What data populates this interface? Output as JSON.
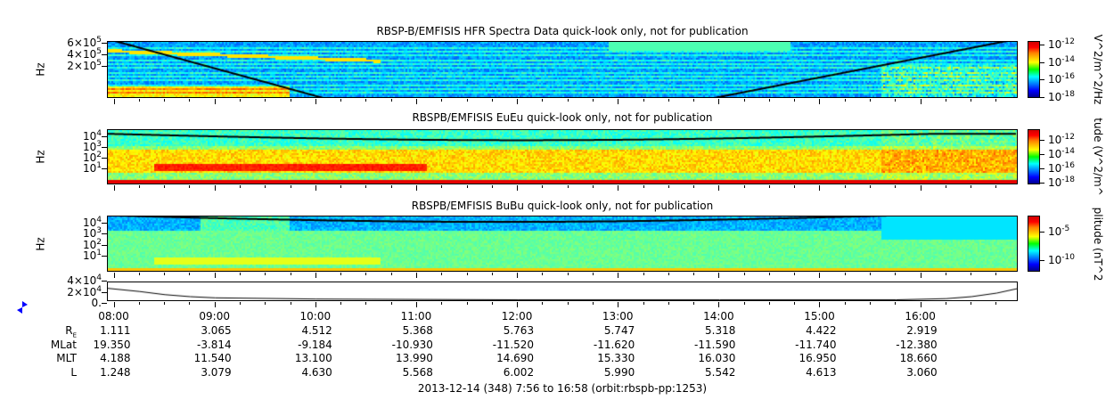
{
  "chart_data": [
    {
      "type": "heatmap",
      "title": "RBSP-B/EMFISIS  HFR Spectra Data quick-look only, not for publication",
      "ylabel": "Hz",
      "yscale": "log",
      "yticks": [
        {
          "m": "6",
          "base": "10",
          "exp": "5"
        },
        {
          "m": "4",
          "base": "10",
          "exp": "5"
        },
        {
          "m": "2",
          "base": "10",
          "exp": "5"
        }
      ],
      "colorbar": {
        "label": "V^2/m^2/Hz",
        "scale": "log",
        "range": [
          1e-18,
          1e-12
        ],
        "ticks": [
          {
            "base": "10",
            "exp": "-12"
          },
          {
            "base": "10",
            "exp": "-14"
          },
          {
            "base": "10",
            "exp": "-16"
          },
          {
            "base": "10",
            "exp": "-18"
          }
        ]
      }
    },
    {
      "type": "heatmap",
      "title": "RBSPB/EMFISIS  EuEu quick-look only, not for publication",
      "ylabel": "Hz",
      "yscale": "log",
      "yticks": [
        {
          "base": "10",
          "exp": "4"
        },
        {
          "base": "10",
          "exp": "3"
        },
        {
          "base": "10",
          "exp": "2"
        },
        {
          "base": "10",
          "exp": "1"
        }
      ],
      "colorbar": {
        "label": "tude (V^2/m^",
        "scale": "log",
        "ticks": [
          {
            "base": "10",
            "exp": "-12"
          },
          {
            "base": "10",
            "exp": "-14"
          },
          {
            "base": "10",
            "exp": "-16"
          },
          {
            "base": "10",
            "exp": "-18"
          }
        ]
      }
    },
    {
      "type": "heatmap",
      "title": "RBSPB/EMFISIS  BuBu quick-look only, not for publication",
      "ylabel": "Hz",
      "yscale": "log",
      "yticks": [
        {
          "base": "10",
          "exp": "4"
        },
        {
          "base": "10",
          "exp": "3"
        },
        {
          "base": "10",
          "exp": "2"
        },
        {
          "base": "10",
          "exp": "1"
        }
      ],
      "colorbar": {
        "label": "plitude (nT^2",
        "scale": "log",
        "ticks": [
          {
            "base": "10",
            "exp": "-5"
          },
          {
            "base": "10",
            "exp": "-10"
          }
        ]
      }
    },
    {
      "type": "line",
      "yticks": [
        {
          "m": "4",
          "base": "10",
          "exp": "4"
        },
        {
          "m": "2",
          "base": "10",
          "exp": "4"
        },
        {
          "m": "0.",
          "base": "",
          "exp": ""
        }
      ],
      "ylim": [
        0,
        45000
      ],
      "x": [
        "07:56",
        "08:15",
        "08:30",
        "08:45",
        "09:00",
        "10:00",
        "12:00",
        "14:00",
        "15:45",
        "16:15",
        "16:30",
        "16:45",
        "16:58"
      ],
      "y": [
        30000,
        22000,
        14000,
        9000,
        6000,
        3000,
        1000,
        1000,
        1000,
        4000,
        9000,
        18000,
        30000
      ]
    }
  ],
  "xaxis": {
    "range": [
      "07:56",
      "16:58"
    ],
    "ticks": [
      "08:00",
      "09:00",
      "10:00",
      "11:00",
      "12:00",
      "13:00",
      "14:00",
      "15:00",
      "16:00"
    ]
  },
  "ephemeris": {
    "rows": [
      {
        "label": "R",
        "sub": "E",
        "values": [
          "1.111",
          "3.065",
          "4.512",
          "5.368",
          "5.763",
          "5.747",
          "5.318",
          "4.422",
          "2.919"
        ]
      },
      {
        "label": "MLat",
        "sub": "",
        "values": [
          "19.350",
          "-3.814",
          "-9.184",
          "-10.930",
          "-11.520",
          "-11.620",
          "-11.590",
          "-11.740",
          "-12.380"
        ]
      },
      {
        "label": "MLT",
        "sub": "",
        "values": [
          "4.188",
          "11.540",
          "13.100",
          "13.990",
          "14.690",
          "15.330",
          "16.030",
          "16.950",
          "18.660"
        ]
      },
      {
        "label": "L",
        "sub": "",
        "values": [
          "1.248",
          "3.079",
          "4.630",
          "5.568",
          "6.002",
          "5.990",
          "5.542",
          "4.613",
          "3.060"
        ]
      }
    ]
  },
  "footer": "2013-12-14 (348) 7:56 to 16:58 (orbit:rbspb-pp:1253)",
  "colors": {
    "nav_arrows": "#0000ff",
    "axis": "#000000"
  }
}
